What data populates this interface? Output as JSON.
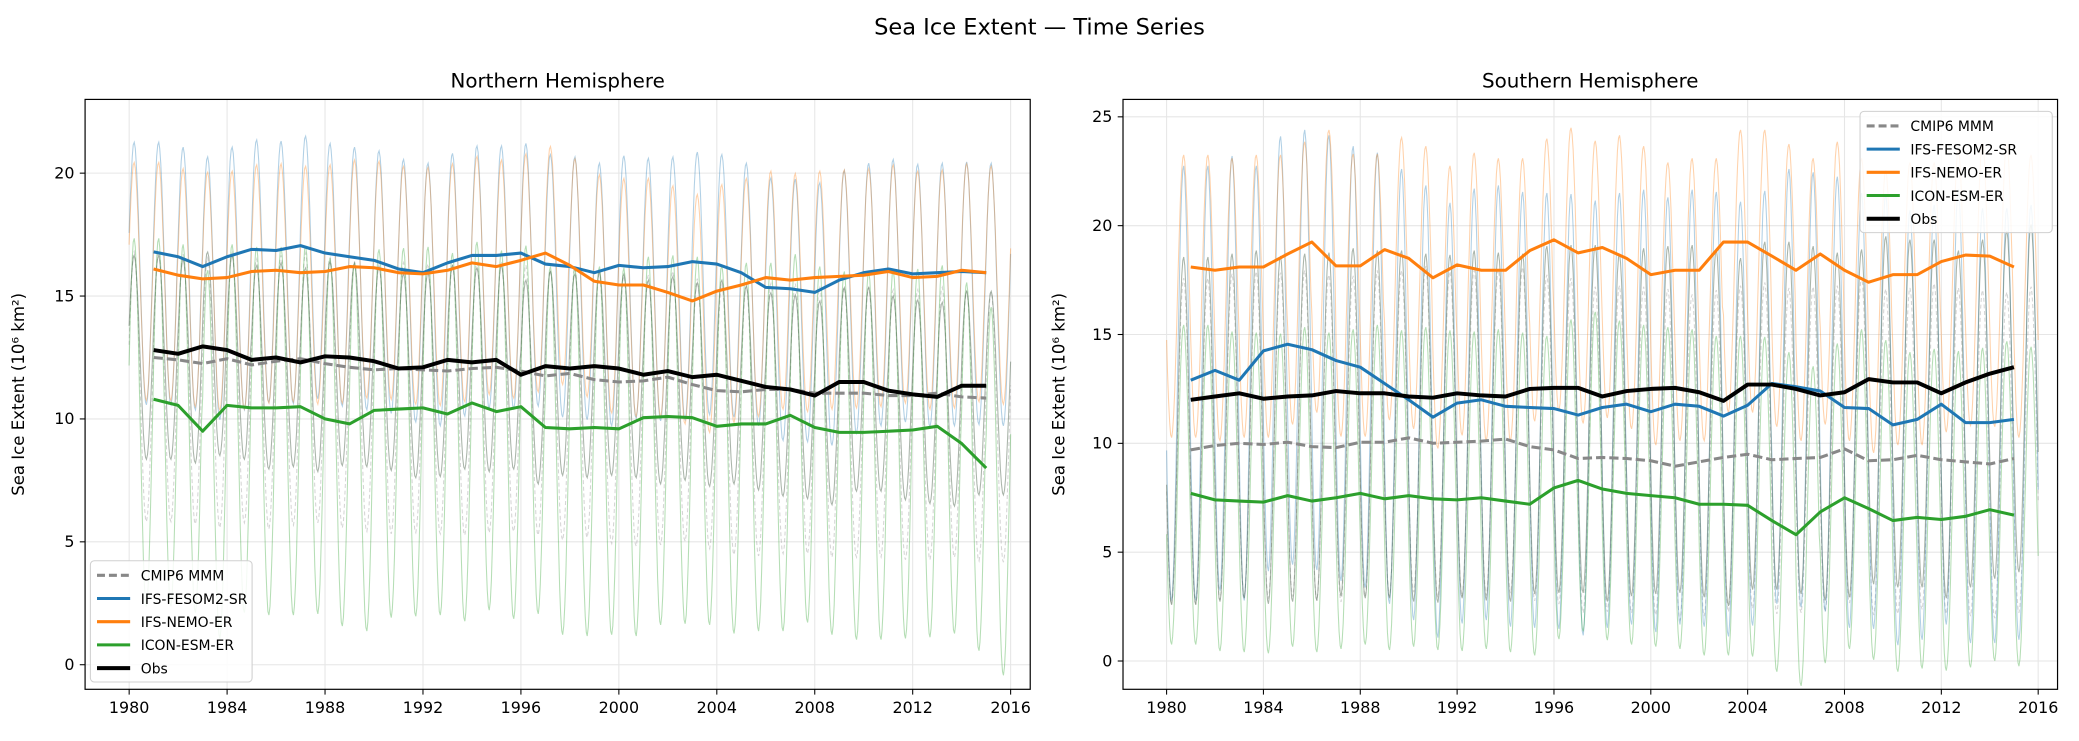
{
  "figure_title": "Sea Ice Extent — Time Series",
  "colors": {
    "CMIP6 MMM": "#888888",
    "IFS-FESOM2-SR": "#1f77b4",
    "IFS-NEMO-ER": "#ff7f0e",
    "ICON-ESM-ER": "#2ca02c",
    "Obs": "#000000"
  },
  "chart_data": [
    {
      "type": "line",
      "title": "Northern Hemisphere",
      "xlabel": "",
      "ylabel": "Sea Ice Extent (10⁶ km²)",
      "xlim": [
        1978.2,
        2016.8
      ],
      "ylim": [
        -1,
        23
      ],
      "xticks": [
        1980,
        1984,
        1988,
        1992,
        1996,
        2000,
        2004,
        2008,
        2012,
        2016
      ],
      "yticks": [
        0,
        5,
        10,
        15,
        20
      ],
      "grid": true,
      "legend": "lower-left",
      "x": [
        1981,
        1982,
        1983,
        1984,
        1985,
        1986,
        1987,
        1988,
        1989,
        1990,
        1991,
        1992,
        1993,
        1994,
        1995,
        1996,
        1997,
        1998,
        1999,
        2000,
        2001,
        2002,
        2003,
        2004,
        2005,
        2006,
        2007,
        2008,
        2009,
        2010,
        2011,
        2012,
        2013,
        2014,
        2015
      ],
      "series": [
        {
          "name": "CMIP6 MMM",
          "style": "dashed",
          "monthly_range": [
            5,
            16
          ],
          "values": [
            12.5,
            12.4,
            12.25,
            12.45,
            12.2,
            12.35,
            12.45,
            12.25,
            12.1,
            12.0,
            12.05,
            12.0,
            11.95,
            12.05,
            12.1,
            11.95,
            11.75,
            11.85,
            11.6,
            11.5,
            11.55,
            11.7,
            11.4,
            11.15,
            11.1,
            11.2,
            11.2,
            11.05,
            11.05,
            11.05,
            10.95,
            10.95,
            11.05,
            10.9,
            10.85
          ]
        },
        {
          "name": "IFS-FESOM2-SR",
          "style": "solid",
          "monthly_range": [
            10,
            20.7
          ],
          "values": [
            16.8,
            16.6,
            16.2,
            16.6,
            16.9,
            16.85,
            17.05,
            16.75,
            16.6,
            16.45,
            16.1,
            15.95,
            16.35,
            16.65,
            16.65,
            16.75,
            16.3,
            16.2,
            15.95,
            16.25,
            16.15,
            16.2,
            16.4,
            16.3,
            15.95,
            15.35,
            15.3,
            15.15,
            15.65,
            15.95,
            16.1,
            15.9,
            15.95,
            16.0,
            15.95
          ]
        },
        {
          "name": "IFS-NEMO-ER",
          "style": "solid",
          "monthly_range": [
            10.5,
            20.2
          ],
          "values": [
            16.1,
            15.85,
            15.7,
            15.75,
            16.0,
            16.05,
            15.95,
            16.0,
            16.2,
            16.15,
            15.95,
            15.9,
            16.05,
            16.35,
            16.2,
            16.45,
            16.75,
            16.25,
            15.6,
            15.45,
            15.45,
            15.15,
            14.8,
            15.2,
            15.45,
            15.75,
            15.65,
            15.75,
            15.8,
            15.85,
            16.0,
            15.75,
            15.8,
            16.05,
            15.95
          ]
        },
        {
          "name": "ICON-ESM-ER",
          "style": "solid",
          "monthly_range": [
            1.5,
            16.5
          ],
          "values": [
            10.8,
            10.55,
            9.5,
            10.55,
            10.45,
            10.45,
            10.5,
            10.0,
            9.8,
            10.35,
            10.4,
            10.45,
            10.2,
            10.65,
            10.3,
            10.5,
            9.65,
            9.6,
            9.65,
            9.6,
            10.05,
            10.1,
            10.05,
            9.7,
            9.8,
            9.8,
            10.15,
            9.65,
            9.45,
            9.45,
            9.5,
            9.55,
            9.7,
            9.0,
            8.0
          ]
        },
        {
          "name": "Obs",
          "style": "solid",
          "monthly_range": [
            7.5,
            15.8
          ],
          "values": [
            12.8,
            12.65,
            12.95,
            12.8,
            12.4,
            12.5,
            12.3,
            12.55,
            12.5,
            12.35,
            12.05,
            12.1,
            12.4,
            12.3,
            12.4,
            11.8,
            12.15,
            12.05,
            12.15,
            12.05,
            11.8,
            11.95,
            11.7,
            11.8,
            11.55,
            11.3,
            11.2,
            10.95,
            11.5,
            11.5,
            11.15,
            11.0,
            10.9,
            11.35,
            11.35
          ]
        }
      ]
    },
    {
      "type": "line",
      "title": "Southern Hemisphere",
      "xlabel": "",
      "ylabel": "Sea Ice Extent (10⁶ km²)",
      "xlim": [
        1978.2,
        2016.8
      ],
      "ylim": [
        -1.3,
        25.8
      ],
      "xticks": [
        1980,
        1984,
        1988,
        1992,
        1996,
        2000,
        2004,
        2008,
        2012,
        2016
      ],
      "yticks": [
        0,
        5,
        10,
        15,
        20,
        25
      ],
      "grid": true,
      "legend": "upper-right",
      "x": [
        1981,
        1982,
        1983,
        1984,
        1985,
        1986,
        1987,
        1988,
        1989,
        1990,
        1991,
        1992,
        1993,
        1994,
        1995,
        1996,
        1997,
        1998,
        1999,
        2000,
        2001,
        2002,
        2003,
        2004,
        2005,
        2006,
        2007,
        2008,
        2009,
        2010,
        2011,
        2012,
        2013,
        2014,
        2015
      ],
      "series": [
        {
          "name": "CMIP6 MMM",
          "style": "dashed",
          "monthly_range": [
            2.5,
            17.5
          ],
          "values": [
            9.7,
            9.9,
            10.0,
            9.95,
            10.05,
            9.85,
            9.8,
            10.05,
            10.05,
            10.25,
            10.0,
            10.05,
            10.1,
            10.2,
            9.85,
            9.7,
            9.3,
            9.35,
            9.3,
            9.2,
            8.95,
            9.15,
            9.35,
            9.5,
            9.25,
            9.3,
            9.35,
            9.75,
            9.2,
            9.25,
            9.45,
            9.25,
            9.15,
            9.05,
            9.3
          ]
        },
        {
          "name": "IFS-FESOM2-SR",
          "style": "solid",
          "monthly_range": [
            2,
            22
          ],
          "values": [
            12.9,
            13.35,
            12.9,
            14.25,
            14.55,
            14.3,
            13.8,
            13.5,
            12.75,
            12.0,
            11.2,
            11.85,
            12.0,
            11.7,
            11.65,
            11.6,
            11.3,
            11.65,
            11.8,
            11.45,
            11.8,
            11.7,
            11.25,
            11.75,
            12.75,
            12.6,
            12.4,
            11.65,
            11.6,
            10.85,
            11.1,
            11.8,
            10.95,
            10.95,
            11.1
          ]
        },
        {
          "name": "IFS-NEMO-ER",
          "style": "solid",
          "monthly_range": [
            10.5,
            23.5
          ],
          "values": [
            18.1,
            17.95,
            18.1,
            18.1,
            18.7,
            19.25,
            18.15,
            18.15,
            18.9,
            18.5,
            17.6,
            18.2,
            17.95,
            17.95,
            18.85,
            19.35,
            18.75,
            19.0,
            18.5,
            17.75,
            17.95,
            17.95,
            19.25,
            19.25,
            18.6,
            17.95,
            18.7,
            17.95,
            17.4,
            17.75,
            17.75,
            18.35,
            18.65,
            18.6,
            18.1
          ]
        },
        {
          "name": "ICON-ESM-ER",
          "style": "solid",
          "monthly_range": [
            0.3,
            15
          ],
          "values": [
            7.7,
            7.4,
            7.35,
            7.3,
            7.6,
            7.35,
            7.5,
            7.7,
            7.45,
            7.6,
            7.45,
            7.4,
            7.5,
            7.35,
            7.2,
            7.95,
            8.3,
            7.9,
            7.7,
            7.6,
            7.5,
            7.2,
            7.2,
            7.15,
            6.45,
            5.8,
            6.85,
            7.5,
            7.0,
            6.45,
            6.6,
            6.5,
            6.65,
            6.95,
            6.7
          ]
        },
        {
          "name": "Obs",
          "style": "solid",
          "monthly_range": [
            3,
            19
          ],
          "values": [
            12.0,
            12.15,
            12.3,
            12.05,
            12.15,
            12.2,
            12.4,
            12.3,
            12.3,
            12.15,
            12.1,
            12.3,
            12.2,
            12.15,
            12.5,
            12.55,
            12.55,
            12.15,
            12.4,
            12.5,
            12.55,
            12.35,
            11.95,
            12.7,
            12.7,
            12.5,
            12.2,
            12.35,
            12.95,
            12.8,
            12.8,
            12.3,
            12.8,
            13.2,
            13.5
          ]
        }
      ]
    }
  ]
}
